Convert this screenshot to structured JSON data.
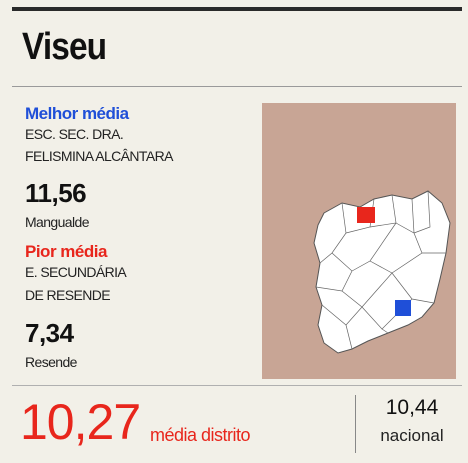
{
  "header": {
    "title": "Viseu"
  },
  "best": {
    "label": "Melhor média",
    "school": [
      "ESC. SEC. DRA.",
      "FELISMINA ALCÂNTARA"
    ],
    "score": "11,56",
    "place": "Mangualde"
  },
  "worst": {
    "label": "Pior média",
    "school": [
      "E. SECUNDÁRIA",
      "DE RESENDE"
    ],
    "score": "7,34",
    "place": "Resende"
  },
  "footer": {
    "district_score": "10,27",
    "district_label": "média distrito",
    "national_score": "10,44",
    "national_label": "nacional"
  }
}
